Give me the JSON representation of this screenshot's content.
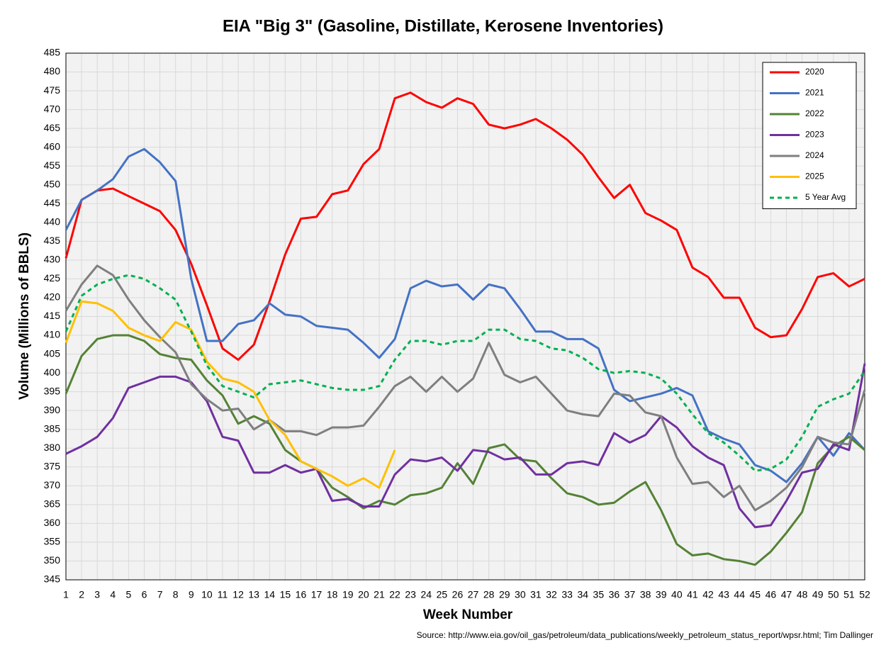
{
  "chart_data": {
    "type": "line",
    "title": "EIA \"Big 3\" (Gasoline, Distillate, Kerosene Inventories)",
    "x_label": "Week Number",
    "y_label": "Volume (Millions of BBLS)",
    "source": "Source: http://www.eia.gov/oil_gas/petroleum/data_publications/weekly_petroleum_status_report/wpsr.html; Tim Dallinger",
    "x": [
      1,
      2,
      3,
      4,
      5,
      6,
      7,
      8,
      9,
      10,
      11,
      12,
      13,
      14,
      15,
      16,
      17,
      18,
      19,
      20,
      21,
      22,
      23,
      24,
      25,
      26,
      27,
      28,
      29,
      30,
      31,
      32,
      33,
      34,
      35,
      36,
      37,
      38,
      39,
      40,
      41,
      42,
      43,
      44,
      45,
      46,
      47,
      48,
      49,
      50,
      51,
      52
    ],
    "xlim": [
      1,
      52
    ],
    "xticks": [
      1,
      2,
      3,
      4,
      5,
      6,
      7,
      8,
      9,
      10,
      11,
      12,
      13,
      14,
      15,
      16,
      17,
      18,
      19,
      20,
      21,
      22,
      23,
      24,
      25,
      26,
      27,
      28,
      29,
      30,
      31,
      32,
      33,
      34,
      35,
      36,
      37,
      38,
      39,
      40,
      41,
      42,
      43,
      44,
      45,
      46,
      47,
      48,
      49,
      50,
      51,
      52
    ],
    "ylim": [
      345,
      485
    ],
    "yticks": [
      345,
      350,
      355,
      360,
      365,
      370,
      375,
      380,
      385,
      390,
      395,
      400,
      405,
      410,
      415,
      420,
      425,
      430,
      435,
      440,
      445,
      450,
      455,
      460,
      465,
      470,
      475,
      480,
      485
    ],
    "grid": true,
    "legend": "upper right",
    "series": [
      {
        "name": "2020",
        "color": "#ff0000",
        "linestyle": "solid",
        "values": [
          430.5,
          446,
          448.5,
          449,
          447,
          445,
          443,
          438,
          429,
          418,
          406.5,
          403.5,
          407.5,
          419,
          431.5,
          441,
          441.5,
          447.5,
          448.5,
          455.5,
          459.5,
          473,
          474.5,
          472,
          470.5,
          473,
          471.5,
          466,
          465,
          466,
          467.5,
          465,
          462,
          458,
          452,
          446.5,
          450,
          442.5,
          440.5,
          438,
          428,
          425.5,
          420,
          420,
          412,
          409.5,
          410,
          417,
          425.5,
          426.5,
          423,
          425
        ]
      },
      {
        "name": "2021",
        "color": "#4472c4",
        "linestyle": "solid",
        "values": [
          438,
          446,
          448.5,
          451.5,
          457.5,
          459.5,
          456,
          451,
          425,
          408.5,
          408.5,
          413,
          414,
          418.5,
          415.5,
          415,
          412.5,
          412,
          411.5,
          408,
          404,
          409,
          422.5,
          424.5,
          423,
          423.5,
          419.5,
          423.5,
          422.5,
          417,
          411,
          411,
          409,
          409,
          406.5,
          395.5,
          392.5,
          393.5,
          394.5,
          396,
          394,
          384.5,
          382.5,
          381,
          375.5,
          374,
          371,
          376,
          383,
          378,
          384,
          379.5
        ]
      },
      {
        "name": "2022",
        "color": "#548235",
        "linestyle": "solid",
        "values": [
          394.5,
          404.5,
          409,
          410,
          410,
          408.5,
          405,
          404,
          403.5,
          398,
          394,
          386.5,
          388.5,
          386.5,
          379.5,
          376.5,
          374.5,
          369.5,
          367,
          364,
          366,
          365,
          367.5,
          368,
          369.5,
          376,
          370.5,
          380,
          381,
          377,
          376.5,
          372,
          368,
          367,
          365,
          365.5,
          368.5,
          371,
          363.5,
          354.5,
          351.5,
          352,
          350.5,
          350,
          349,
          352.5,
          357.5,
          363,
          376,
          380.5,
          383,
          379.5
        ]
      },
      {
        "name": "2023",
        "color": "#7030a0",
        "linestyle": "solid",
        "values": [
          378.5,
          380.5,
          383,
          388,
          396,
          397.5,
          399,
          399,
          397.5,
          392.5,
          383,
          382,
          373.5,
          373.5,
          375.5,
          373.5,
          374.5,
          366,
          366.5,
          364.5,
          364.5,
          373,
          377,
          376.5,
          377.5,
          374,
          379.5,
          379,
          377,
          377.5,
          373,
          373,
          376,
          376.5,
          375.5,
          384,
          381.5,
          383.5,
          388.5,
          385.5,
          380.5,
          377.5,
          375.5,
          364,
          359,
          359.5,
          366,
          373.5,
          374.5,
          381,
          379.5,
          402.5
        ]
      },
      {
        "name": "2024",
        "color": "#7f7f7f",
        "linestyle": "solid",
        "values": [
          416.5,
          423.5,
          428.5,
          426,
          419.5,
          414,
          409.5,
          405.5,
          397,
          393,
          390,
          390.5,
          385,
          387.5,
          384.5,
          384.5,
          383.5,
          385.5,
          385.5,
          386,
          391,
          396.5,
          399,
          395,
          399,
          395,
          398.5,
          408,
          399.5,
          397.5,
          399,
          394.5,
          390,
          389,
          388.5,
          394.5,
          394,
          389.5,
          388.5,
          377.5,
          370.5,
          371,
          367,
          370,
          363.5,
          366,
          369.5,
          375,
          383,
          381.5,
          381,
          395.5
        ]
      },
      {
        "name": "2025",
        "color": "#ffc000",
        "linestyle": "solid",
        "values": [
          408,
          419,
          418.5,
          416.5,
          412,
          410,
          408.5,
          413.5,
          411.5,
          403,
          398.5,
          397.5,
          395,
          387.5,
          383.5,
          376.5,
          374.5,
          372.5,
          370,
          372,
          369.5,
          379.5,
          null,
          null,
          null,
          null,
          null,
          null,
          null,
          null,
          null,
          null,
          null,
          null,
          null,
          null,
          null,
          null,
          null,
          null,
          null,
          null,
          null,
          null,
          null,
          null,
          null,
          null,
          null,
          null,
          null,
          null
        ]
      },
      {
        "name": "5 Year Avg",
        "color": "#00b050",
        "linestyle": "dashed",
        "values": [
          411,
          420.5,
          423.5,
          425,
          426,
          425,
          422.5,
          419.5,
          411,
          402,
          396.5,
          395,
          393.5,
          397,
          397.5,
          398,
          397,
          396,
          395.5,
          395.5,
          396.5,
          403.5,
          408.5,
          408.5,
          407.5,
          408.5,
          408.5,
          411.5,
          411.5,
          409,
          408.5,
          406.5,
          406,
          404,
          401,
          400,
          400.5,
          400,
          398.5,
          394.5,
          389,
          384,
          381.5,
          378,
          374,
          374.5,
          377,
          383,
          391,
          393,
          394.5,
          400.5
        ]
      }
    ]
  }
}
